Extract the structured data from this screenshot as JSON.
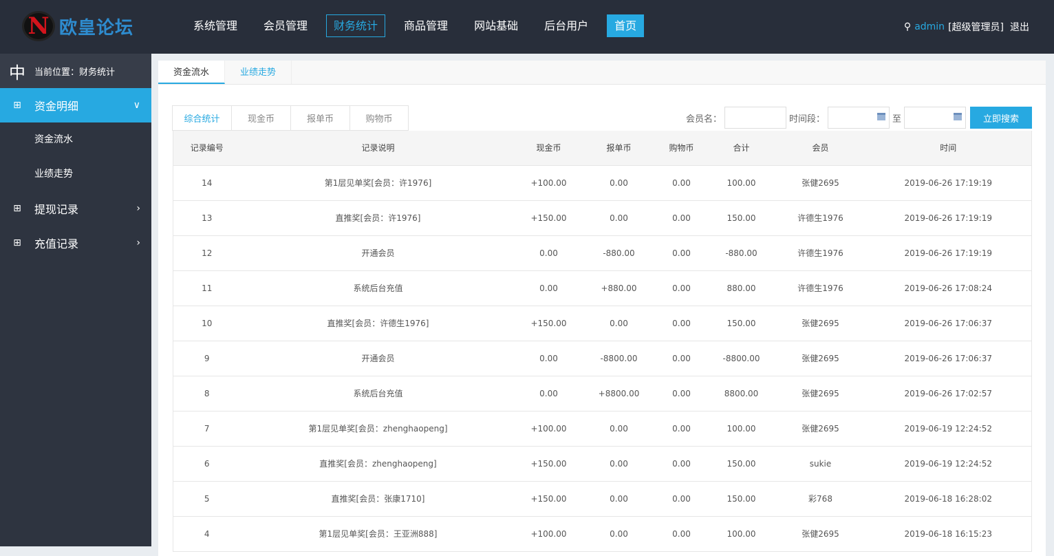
{
  "logo": {
    "text": "欧皇论坛",
    "mark": "N"
  },
  "nav": [
    "系统管理",
    "会员管理",
    "财务统计",
    "商品管理",
    "网站基础",
    "后台用户",
    "首页"
  ],
  "user": {
    "name": "admin",
    "role": "[超级管理员]",
    "logout": "退出"
  },
  "sidebar": {
    "crumb": "当前位置：财务统计",
    "items": [
      {
        "label": "资金明细",
        "subs": [
          "资金流水",
          "业绩走势"
        ]
      },
      {
        "label": "提现记录"
      },
      {
        "label": "充值记录"
      }
    ]
  },
  "tabs": [
    "资金流水",
    "业绩走势"
  ],
  "subtabs": [
    "综合统计",
    "现金币",
    "报单币",
    "购物币"
  ],
  "search": {
    "member_label": "会员名：",
    "period_label": "时间段：",
    "to": "至",
    "button": "立即搜索"
  },
  "table": {
    "headers": [
      "记录编号",
      "记录说明",
      "现金币",
      "报单币",
      "购物币",
      "合计",
      "会员",
      "时间"
    ],
    "rows": [
      [
        "14",
        "第1层见单奖[会员：许1976]",
        "+100.00",
        "0.00",
        "0.00",
        "100.00",
        "张健2695",
        "2019-06-26 17:19:19"
      ],
      [
        "13",
        "直推奖[会员：许1976]",
        "+150.00",
        "0.00",
        "0.00",
        "150.00",
        "许德生1976",
        "2019-06-26 17:19:19"
      ],
      [
        "12",
        "开通会员",
        "0.00",
        "-880.00",
        "0.00",
        "-880.00",
        "许德生1976",
        "2019-06-26 17:19:19"
      ],
      [
        "11",
        "系统后台充值",
        "0.00",
        "+880.00",
        "0.00",
        "880.00",
        "许德生1976",
        "2019-06-26 17:08:24"
      ],
      [
        "10",
        "直推奖[会员：许德生1976]",
        "+150.00",
        "0.00",
        "0.00",
        "150.00",
        "张健2695",
        "2019-06-26 17:06:37"
      ],
      [
        "9",
        "开通会员",
        "0.00",
        "-8800.00",
        "0.00",
        "-8800.00",
        "张健2695",
        "2019-06-26 17:06:37"
      ],
      [
        "8",
        "系统后台充值",
        "0.00",
        "+8800.00",
        "0.00",
        "8800.00",
        "张健2695",
        "2019-06-26 17:02:57"
      ],
      [
        "7",
        "第1层见单奖[会员：zhenghaopeng]",
        "+100.00",
        "0.00",
        "0.00",
        "100.00",
        "张健2695",
        "2019-06-19 12:24:52"
      ],
      [
        "6",
        "直推奖[会员：zhenghaopeng]",
        "+150.00",
        "0.00",
        "0.00",
        "150.00",
        "sukie",
        "2019-06-19 12:24:52"
      ],
      [
        "5",
        "直推奖[会员：张康1710]",
        "+150.00",
        "0.00",
        "0.00",
        "150.00",
        "彩768",
        "2019-06-18 16:28:02"
      ],
      [
        "4",
        "第1层见单奖[会员：王亚洲888]",
        "+100.00",
        "0.00",
        "0.00",
        "100.00",
        "张健2695",
        "2019-06-18 16:15:23"
      ]
    ]
  }
}
